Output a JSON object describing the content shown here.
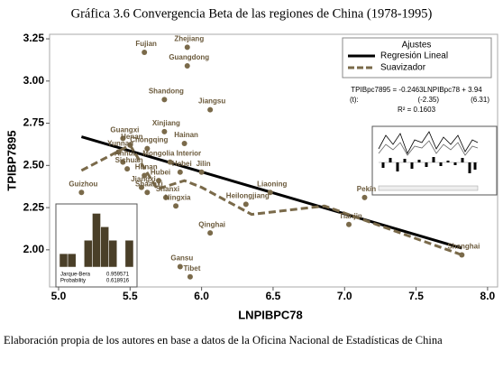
{
  "chart_data": [
    {
      "type": "scatter",
      "title": "Gráfica 3.6 Convergencia Beta de las regiones de China (1978-1995)",
      "x_label": "LNPIBPC78",
      "y_label": "TPIBP7895",
      "point_labels": [
        "Fujian",
        "Zhejiang",
        "Guangdong",
        "Shandong",
        "Jiangsu",
        "Xinjiang",
        "Guangxi",
        "Henan",
        "Yunnan",
        "Chongqing",
        "Hainan",
        "Mongolia Interior",
        "Hebei",
        "Anhui",
        "Jilin",
        "Sichuan",
        "Hunan",
        "Hubei",
        "Guizhou",
        "Jiangxi",
        "Shaanxi",
        "Shanxi",
        "Ningxia",
        "Liaoning",
        "Heilongjiang",
        "Pekín",
        "Tianjin",
        "Qinghai",
        "Shanghai",
        "Gansu",
        "Tibet"
      ],
      "x": [
        5.6,
        5.9,
        5.9,
        5.74,
        6.06,
        5.74,
        5.45,
        5.5,
        5.42,
        5.62,
        5.88,
        5.78,
        5.85,
        5.45,
        6.0,
        5.48,
        5.6,
        5.7,
        5.16,
        5.58,
        5.62,
        5.75,
        5.82,
        6.48,
        6.31,
        7.14,
        7.03,
        6.06,
        7.82,
        5.85,
        5.92
      ],
      "values": [
        3.17,
        3.2,
        3.09,
        2.89,
        2.83,
        2.7,
        2.66,
        2.62,
        2.58,
        2.6,
        2.63,
        2.52,
        2.46,
        2.52,
        2.46,
        2.48,
        2.44,
        2.41,
        2.34,
        2.37,
        2.34,
        2.31,
        2.26,
        2.34,
        2.27,
        2.31,
        2.15,
        2.1,
        1.97,
        1.9,
        1.84
      ],
      "color": "#7a6a4a",
      "series": [
        {
          "name": "Regresión Lineal",
          "color": "#000000",
          "dash": false,
          "x": [
            5.16,
            7.82
          ],
          "values": [
            2.67,
            2.01
          ]
        },
        {
          "name": "Suavizador",
          "color": "#7a6a4a",
          "dash": true,
          "x": [
            5.16,
            5.5,
            5.69,
            5.88,
            6.0,
            6.35,
            6.86,
            7.82
          ],
          "values": [
            2.47,
            2.62,
            2.36,
            2.41,
            2.37,
            2.21,
            2.26,
            1.97
          ]
        }
      ],
      "legend_title": "Ajustes",
      "annotations": [
        "TPIBpc7895 = -0.2463LNPIBpc78 + 3.94",
        "(t):",
        "(-2.35)",
        "(6.31)",
        "R² = 0.1603"
      ],
      "xlim": [
        4.937,
        8.07
      ],
      "ylim": [
        1.78,
        3.277
      ],
      "xticks": [
        {
          "value": 5.0,
          "label": "5.0"
        },
        5.5,
        {
          "value": 6.0,
          "label": "6.0"
        },
        6.5,
        {
          "value": 7.0,
          "label": "7.0"
        },
        7.5,
        {
          "value": 8.0,
          "label": "8.0"
        }
      ],
      "yticks": [
        {
          "value": 2.0,
          "label": "2.00"
        },
        2.25,
        {
          "value": 2.5,
          "label": "2.50"
        },
        2.75,
        {
          "value": 3.0,
          "label": "3.00"
        },
        3.25
      ],
      "caption": "Elaboración propia de los autores en base a datos de la Oficina Nacional de Estadísticas de China"
    },
    {
      "type": "bar",
      "categories": [
        null,
        null,
        null,
        null,
        null,
        null,
        null,
        null,
        null
      ],
      "values": [
        1,
        1,
        0,
        2,
        4,
        3,
        2,
        0,
        2
      ],
      "color": "#4a3f28",
      "ylim": [
        0,
        4.3
      ],
      "annotations": [
        "Jarque-Bera",
        "0.959571",
        "Probability",
        "0.618916"
      ]
    }
  ]
}
